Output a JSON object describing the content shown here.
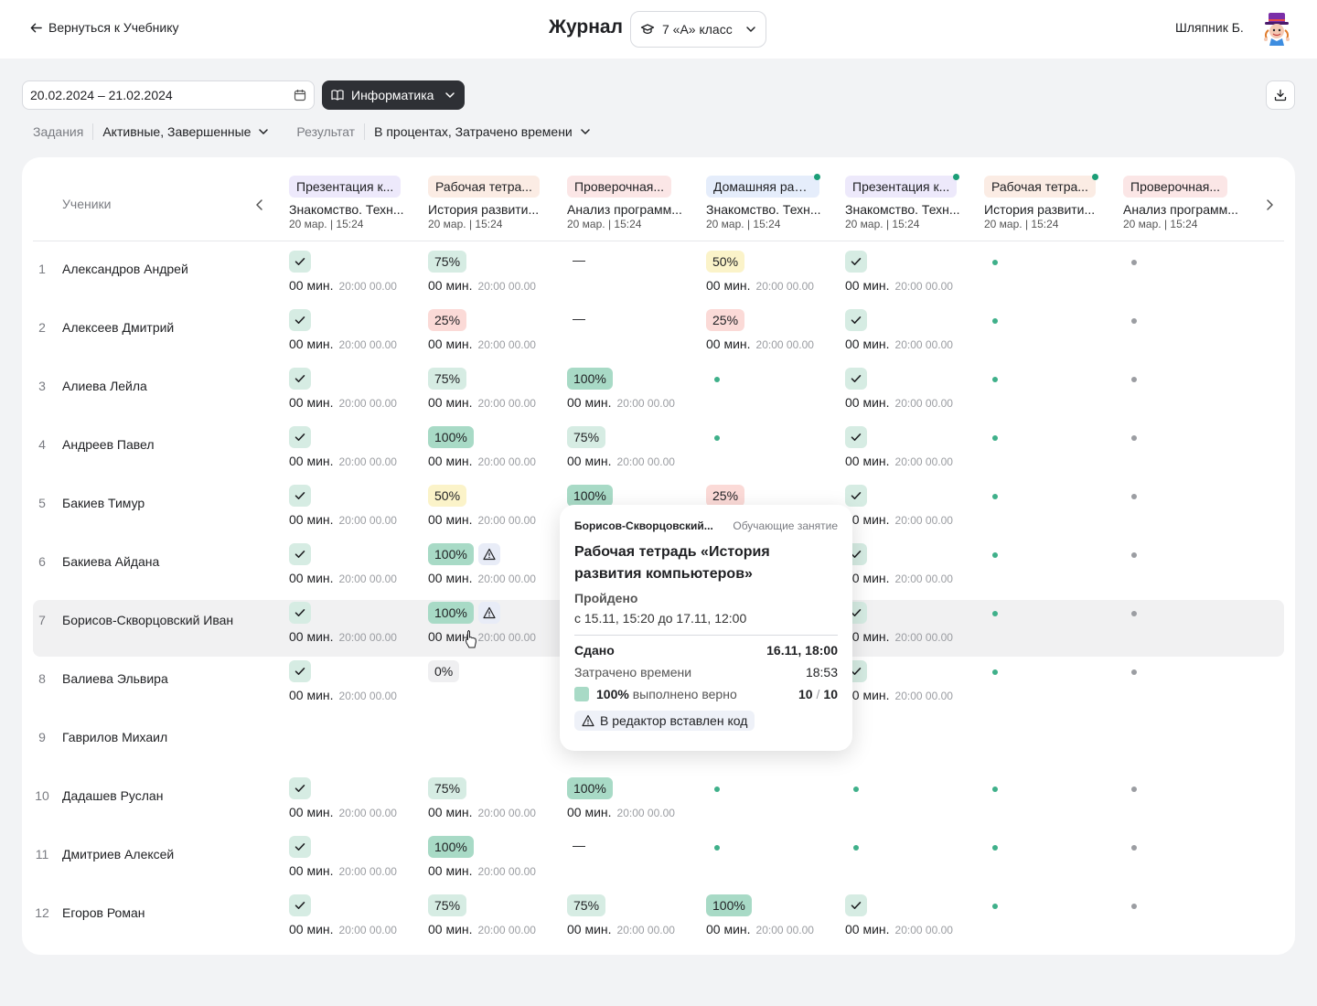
{
  "header": {
    "back_label": "Вернуться к Учебнику",
    "title": "Журнал",
    "class_label": "7 «А» класс",
    "user_name": "Шляпник Б."
  },
  "filters": {
    "date_range": "20.02.2024 – 21.02.2024",
    "subject": "Информатика",
    "tasks_label": "Задания",
    "tasks_value": "Активные, Завершенные",
    "result_label": "Результат",
    "result_value": "В процентах, Затрачено времени"
  },
  "table": {
    "students_header": "Ученики",
    "columns": [
      {
        "badge": "Презентация к...",
        "badge_color": "#ede9fb",
        "title": "Знакомство. Техн...",
        "date": "20 мар. | 15:24",
        "dot": false
      },
      {
        "badge": "Рабочая тетра...",
        "badge_color": "#fbece4",
        "title": "История развити...",
        "date": "20 мар. | 15:24",
        "dot": false
      },
      {
        "badge": "Проверочная...",
        "badge_color": "#fbe6e6",
        "title": "Анализ программ...",
        "date": "20 мар. | 15:24",
        "dot": false
      },
      {
        "badge": "Домашняя раб...",
        "badge_color": "#e5edfb",
        "title": "Знакомство. Техн...",
        "date": "20 мар. | 15:24",
        "dot": true
      },
      {
        "badge": "Презентация к...",
        "badge_color": "#ede9fb",
        "title": "Знакомство. Техн...",
        "date": "20 мар. | 15:24",
        "dot": true
      },
      {
        "badge": "Рабочая тетра...",
        "badge_color": "#fbece4",
        "title": "История развити...",
        "date": "20 мар. | 15:24",
        "dot": true
      },
      {
        "badge": "Проверочная...",
        "badge_color": "#fbe6e6",
        "title": "Анализ программ...",
        "date": "20 мар. | 15:24",
        "dot": false
      }
    ],
    "time_label": "00 мин.",
    "timestamp": "20:00 00.00",
    "rows": [
      {
        "num": "1",
        "name": "Александров Андрей",
        "cells": [
          {
            "kind": "check",
            "time": true
          },
          {
            "kind": "pill",
            "value": "75%",
            "tone": "green",
            "time": true
          },
          {
            "kind": "dash"
          },
          {
            "kind": "pill",
            "value": "50%",
            "tone": "yellow",
            "time": true
          },
          {
            "kind": "check",
            "time": true
          },
          {
            "kind": "dot",
            "tone": "green"
          },
          {
            "kind": "dot",
            "tone": "grey"
          }
        ]
      },
      {
        "num": "2",
        "name": "Алексеев Дмитрий",
        "cells": [
          {
            "kind": "check",
            "time": true
          },
          {
            "kind": "pill",
            "value": "25%",
            "tone": "red",
            "time": true
          },
          {
            "kind": "dash"
          },
          {
            "kind": "pill",
            "value": "25%",
            "tone": "red",
            "time": true
          },
          {
            "kind": "check",
            "time": true
          },
          {
            "kind": "dot",
            "tone": "green"
          },
          {
            "kind": "dot",
            "tone": "grey"
          }
        ]
      },
      {
        "num": "3",
        "name": "Алиева Лейла",
        "cells": [
          {
            "kind": "check",
            "time": true
          },
          {
            "kind": "pill",
            "value": "75%",
            "tone": "green",
            "time": true
          },
          {
            "kind": "pill",
            "value": "100%",
            "tone": "dark",
            "time": true
          },
          {
            "kind": "dot",
            "tone": "green"
          },
          {
            "kind": "check",
            "time": true
          },
          {
            "kind": "dot",
            "tone": "green"
          },
          {
            "kind": "dot",
            "tone": "grey"
          }
        ]
      },
      {
        "num": "4",
        "name": "Андреев Павел",
        "cells": [
          {
            "kind": "check",
            "time": true
          },
          {
            "kind": "pill",
            "value": "100%",
            "tone": "dark",
            "time": true
          },
          {
            "kind": "pill",
            "value": "75%",
            "tone": "green",
            "time": true
          },
          {
            "kind": "dot",
            "tone": "green"
          },
          {
            "kind": "check",
            "time": true
          },
          {
            "kind": "dot",
            "tone": "green"
          },
          {
            "kind": "dot",
            "tone": "grey"
          }
        ]
      },
      {
        "num": "5",
        "name": "Бакиев Тимур",
        "cells": [
          {
            "kind": "check",
            "time": true
          },
          {
            "kind": "pill",
            "value": "50%",
            "tone": "yellow",
            "time": true
          },
          {
            "kind": "pill",
            "value": "100%",
            "tone": "dark",
            "time": true
          },
          {
            "kind": "pill",
            "value": "25%",
            "tone": "red",
            "time": true
          },
          {
            "kind": "check",
            "time": true
          },
          {
            "kind": "dot",
            "tone": "green"
          },
          {
            "kind": "dot",
            "tone": "grey"
          }
        ]
      },
      {
        "num": "6",
        "name": "Бакиева Айдана",
        "cells": [
          {
            "kind": "check",
            "time": true
          },
          {
            "kind": "pill",
            "value": "100%",
            "tone": "dark",
            "time": true,
            "warn": true
          },
          {
            "kind": "empty"
          },
          {
            "kind": "empty"
          },
          {
            "kind": "check",
            "time": true
          },
          {
            "kind": "dot",
            "tone": "green"
          },
          {
            "kind": "dot",
            "tone": "grey"
          }
        ]
      },
      {
        "num": "7",
        "name": "Борисов-Скворцовский Иван",
        "highlight": true,
        "cells": [
          {
            "kind": "check",
            "time": true
          },
          {
            "kind": "pill",
            "value": "100%",
            "tone": "dark",
            "time": true,
            "warn": true
          },
          {
            "kind": "empty"
          },
          {
            "kind": "empty"
          },
          {
            "kind": "check",
            "time": true
          },
          {
            "kind": "dot",
            "tone": "green"
          },
          {
            "kind": "dot",
            "tone": "grey"
          }
        ]
      },
      {
        "num": "8",
        "name": "Валиева Эльвира",
        "cells": [
          {
            "kind": "check",
            "time": true
          },
          {
            "kind": "pill",
            "value": "0%",
            "tone": "gray",
            "time": false
          },
          {
            "kind": "empty"
          },
          {
            "kind": "empty"
          },
          {
            "kind": "check",
            "time": true
          },
          {
            "kind": "dot",
            "tone": "green"
          },
          {
            "kind": "dot",
            "tone": "grey"
          }
        ]
      },
      {
        "num": "9",
        "name": "Гаврилов Михаил",
        "cells": [
          {
            "kind": "empty"
          },
          {
            "kind": "empty"
          },
          {
            "kind": "empty"
          },
          {
            "kind": "empty"
          },
          {
            "kind": "empty"
          },
          {
            "kind": "empty"
          },
          {
            "kind": "empty"
          }
        ]
      },
      {
        "num": "10",
        "name": "Дадашев Руслан",
        "cells": [
          {
            "kind": "check",
            "time": true
          },
          {
            "kind": "pill",
            "value": "75%",
            "tone": "green",
            "time": true
          },
          {
            "kind": "pill",
            "value": "100%",
            "tone": "dark",
            "time": true
          },
          {
            "kind": "dot",
            "tone": "green"
          },
          {
            "kind": "dot",
            "tone": "green"
          },
          {
            "kind": "dot",
            "tone": "green"
          },
          {
            "kind": "dot",
            "tone": "grey"
          }
        ]
      },
      {
        "num": "11",
        "name": "Дмитриев Алексей",
        "cells": [
          {
            "kind": "check",
            "time": true
          },
          {
            "kind": "pill",
            "value": "100%",
            "tone": "dark",
            "time": true
          },
          {
            "kind": "dash"
          },
          {
            "kind": "dot",
            "tone": "green"
          },
          {
            "kind": "dot",
            "tone": "green"
          },
          {
            "kind": "dot",
            "tone": "green"
          },
          {
            "kind": "dot",
            "tone": "grey"
          }
        ]
      },
      {
        "num": "12",
        "name": "Егоров Роман",
        "cells": [
          {
            "kind": "check",
            "time": true
          },
          {
            "kind": "pill",
            "value": "75%",
            "tone": "green",
            "time": true
          },
          {
            "kind": "pill",
            "value": "75%",
            "tone": "green",
            "time": true
          },
          {
            "kind": "pill",
            "value": "100%",
            "tone": "dark",
            "time": true
          },
          {
            "kind": "check",
            "time": true
          },
          {
            "kind": "dot",
            "tone": "green"
          },
          {
            "kind": "dot",
            "tone": "grey"
          }
        ]
      }
    ]
  },
  "tooltip": {
    "student": "Борисов-Скворцовский...",
    "type": "Обучающие занятие",
    "title": "Рабочая тетрадь «История развития компьютеров»",
    "status": "Пройдено",
    "period": "с 15.11, 15:20 до 17.11, 12:00",
    "submitted_label": "Сдано",
    "submitted_value": "16.11, 18:00",
    "time_spent_label": "Затрачено времени",
    "time_spent_value": "18:53",
    "correct_percent": "100%",
    "correct_label": "выполнено верно",
    "score": "10",
    "score_total": "10",
    "warning": "В редактор вставлен код"
  },
  "icons": {
    "back": "arrow-left-icon",
    "class": "graduation-cap-icon",
    "calendar": "calendar-icon",
    "subject": "book-icon",
    "download": "download-icon",
    "warning": "warning-triangle-icon"
  },
  "colors": {
    "accent_green": "#1b9e77",
    "pill_green": "#d6ece3",
    "pill_dark_green": "#a8dac6",
    "pill_yellow": "#fbf3c9",
    "pill_red": "#fbdad7",
    "subject_button": "#2e3035"
  }
}
